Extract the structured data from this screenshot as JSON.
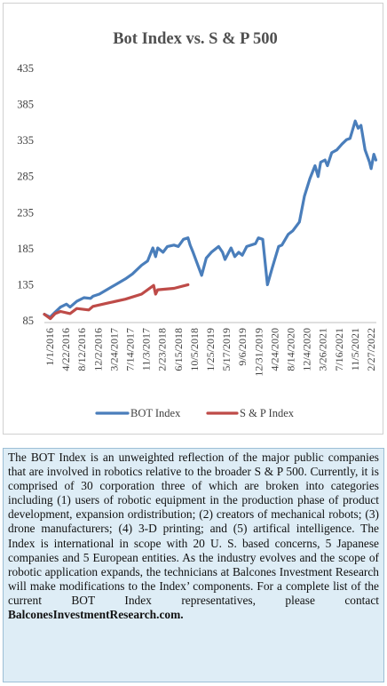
{
  "chart_data": {
    "type": "line",
    "title": "Bot Index vs. S & P 500",
    "ylim": [
      85,
      435
    ],
    "yticks": [
      85,
      135,
      185,
      235,
      285,
      335,
      385,
      435
    ],
    "xticks": [
      "1/1/2016",
      "4/22/2016",
      "8/12/2016",
      "12/2/2016",
      "3/24/2017",
      "7/14/2017",
      "11/3/2017",
      "2/23/2018",
      "6/15/2018",
      "10/5/2018",
      "1/25/2019",
      "5/17/2019",
      "9/6/2019",
      "12/31/2019",
      "4/24/2020",
      "8/14/2020",
      "12/4/2020",
      "3/26/2021",
      "7/16/2021",
      "11/5/2021",
      "2/27/2022"
    ],
    "x_range": [
      "2016-01-01",
      "2022-04-15"
    ],
    "legend_position": "bottom",
    "grid": false,
    "series": [
      {
        "name": "BOT Index",
        "color": "#4a7ebb",
        "points": [
          [
            "2016-01-01",
            94
          ],
          [
            "2016-02-10",
            90
          ],
          [
            "2016-03-15",
            97
          ],
          [
            "2016-04-22",
            104
          ],
          [
            "2016-06-01",
            108
          ],
          [
            "2016-06-27",
            104
          ],
          [
            "2016-08-12",
            112
          ],
          [
            "2016-10-01",
            117
          ],
          [
            "2016-11-15",
            116
          ],
          [
            "2016-12-02",
            119
          ],
          [
            "2017-01-15",
            122
          ],
          [
            "2017-03-24",
            130
          ],
          [
            "2017-05-15",
            136
          ],
          [
            "2017-07-14",
            143
          ],
          [
            "2017-09-01",
            150
          ],
          [
            "2017-11-03",
            162
          ],
          [
            "2017-12-15",
            168
          ],
          [
            "2018-01-20",
            186
          ],
          [
            "2018-02-08",
            174
          ],
          [
            "2018-02-23",
            186
          ],
          [
            "2018-04-01",
            180
          ],
          [
            "2018-05-01",
            188
          ],
          [
            "2018-06-15",
            190
          ],
          [
            "2018-07-15",
            188
          ],
          [
            "2018-08-20",
            198
          ],
          [
            "2018-09-20",
            200
          ],
          [
            "2018-10-05",
            190
          ],
          [
            "2018-10-25",
            180
          ],
          [
            "2018-12-24",
            148
          ],
          [
            "2019-01-25",
            172
          ],
          [
            "2019-03-01",
            180
          ],
          [
            "2019-04-20",
            188
          ],
          [
            "2019-05-17",
            180
          ],
          [
            "2019-06-03",
            170
          ],
          [
            "2019-07-15",
            186
          ],
          [
            "2019-08-10",
            174
          ],
          [
            "2019-09-06",
            180
          ],
          [
            "2019-10-01",
            176
          ],
          [
            "2019-11-01",
            188
          ],
          [
            "2019-12-31",
            192
          ],
          [
            "2020-01-20",
            200
          ],
          [
            "2020-02-19",
            198
          ],
          [
            "2020-03-23",
            135
          ],
          [
            "2020-04-24",
            158
          ],
          [
            "2020-06-08",
            188
          ],
          [
            "2020-07-01",
            190
          ],
          [
            "2020-08-14",
            205
          ],
          [
            "2020-09-15",
            210
          ],
          [
            "2020-10-30",
            222
          ],
          [
            "2020-12-04",
            258
          ],
          [
            "2021-01-10",
            282
          ],
          [
            "2021-02-15",
            300
          ],
          [
            "2021-03-08",
            285
          ],
          [
            "2021-03-26",
            305
          ],
          [
            "2021-04-25",
            308
          ],
          [
            "2021-05-12",
            300
          ],
          [
            "2021-06-10",
            318
          ],
          [
            "2021-07-16",
            322
          ],
          [
            "2021-08-20",
            330
          ],
          [
            "2021-09-20",
            336
          ],
          [
            "2021-10-15",
            338
          ],
          [
            "2021-11-05",
            352
          ],
          [
            "2021-11-20",
            362
          ],
          [
            "2021-12-10",
            352
          ],
          [
            "2021-12-30",
            356
          ],
          [
            "2022-01-27",
            322
          ],
          [
            "2022-02-27",
            305
          ],
          [
            "2022-03-10",
            296
          ],
          [
            "2022-03-29",
            316
          ],
          [
            "2022-04-12",
            308
          ]
        ]
      },
      {
        "name": "S & P Index",
        "color": "#be4b48",
        "points": [
          [
            "2016-01-01",
            94
          ],
          [
            "2016-02-11",
            88
          ],
          [
            "2016-03-15",
            95
          ],
          [
            "2016-04-22",
            98
          ],
          [
            "2016-06-27",
            95
          ],
          [
            "2016-08-12",
            102
          ],
          [
            "2016-11-03",
            100
          ],
          [
            "2016-12-02",
            105
          ],
          [
            "2017-03-24",
            110
          ],
          [
            "2017-07-14",
            115
          ],
          [
            "2017-11-03",
            122
          ],
          [
            "2018-01-26",
            134
          ],
          [
            "2018-02-08",
            122
          ],
          [
            "2018-02-23",
            128
          ],
          [
            "2018-06-15",
            130
          ],
          [
            "2018-09-20,",
            135
          ]
        ]
      }
    ]
  },
  "description": {
    "text": "The BOT Index is an unweighted reflection of the major public companies that are involved in robotics relative to the broader S & P 500. Currently, it is comprised of 30 corporation three of which are broken into categories including (1) users of robotic equipment in the production phase of product development, expansion ordistribution; (2) creators of mechanical robots; (3) drone manufacturers; (4) 3-D printing; and (5) artifical intelligence. The Index is international in scope with 20 U. S. based concerns, 5 Japanese companies and 5 European entities. As the industry evolves and the scope of robotic application expands, the technicians at Balcones Investment Research will make modifications to the Index’ components. For a  complete list of the current BOT Index representatives, please contact",
    "contact": "BalconesInvestmentResearch.com."
  }
}
